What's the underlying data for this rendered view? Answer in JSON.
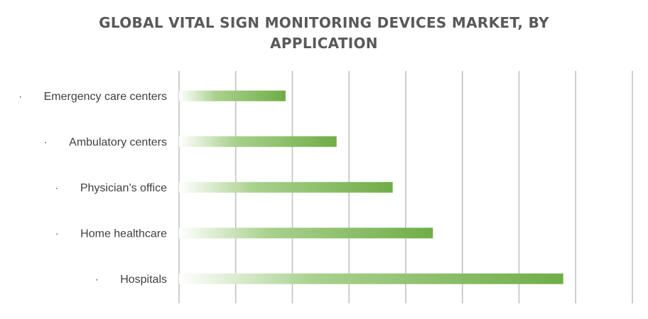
{
  "chart_data": {
    "type": "bar",
    "orientation": "horizontal",
    "title_lines": [
      "GLOBAL VITAL SIGN MONITORING DEVICES MARKET, BY",
      "APPLICATION"
    ],
    "categories": [
      "Emergency care centers",
      "Ambulatory centers",
      "Physician’s office",
      "Home healthcare",
      "Hospitals"
    ],
    "bullet": "·",
    "values": [
      18.8,
      27.8,
      37.7,
      44.8,
      67.8
    ],
    "xlim": [
      0,
      80
    ],
    "x_tick_step": 10,
    "grid": true,
    "legend": "none",
    "colors": {
      "bar_start": "#ffffff",
      "bar_end": "#70ad47",
      "grid": "#bfbfbf",
      "text": "#404040",
      "title": "#595959"
    }
  }
}
